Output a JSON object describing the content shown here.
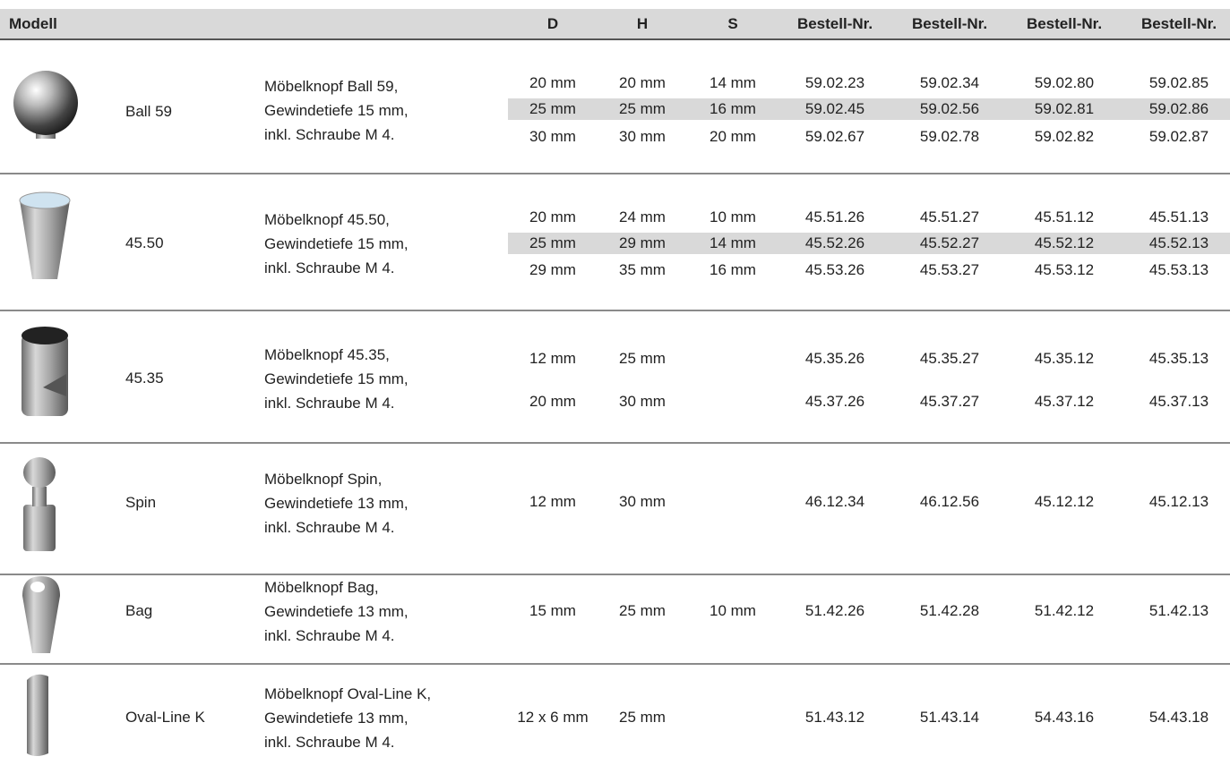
{
  "header": {
    "model": "Modell",
    "columns": [
      "D",
      "H",
      "S",
      "Bestell-Nr.",
      "Bestell-Nr.",
      "Bestell-Nr.",
      "Bestell-Nr."
    ]
  },
  "products": [
    {
      "name": "Ball 59",
      "description": [
        "Möbelknopf Ball 59,",
        "Gewindetiefe 15 mm,",
        "inkl. Schraube M 4."
      ],
      "variants": [
        {
          "D": "20 mm",
          "H": "20 mm",
          "S": "14 mm",
          "order": [
            "59.02.23",
            "59.02.34",
            "59.02.80",
            "59.02.85"
          ]
        },
        {
          "D": "25 mm",
          "H": "25 mm",
          "S": "16 mm",
          "order": [
            "59.02.45",
            "59.02.56",
            "59.02.81",
            "59.02.86"
          ]
        },
        {
          "D": "30 mm",
          "H": "30 mm",
          "S": "20 mm",
          "order": [
            "59.02.67",
            "59.02.78",
            "59.02.82",
            "59.02.87"
          ]
        }
      ]
    },
    {
      "name": "45.50",
      "description": [
        "Möbelknopf 45.50,",
        "Gewindetiefe 15 mm,",
        "inkl. Schraube M 4."
      ],
      "variants": [
        {
          "D": "20 mm",
          "H": "24 mm",
          "S": "10 mm",
          "order": [
            "45.51.26",
            "45.51.27",
            "45.51.12",
            "45.51.13"
          ]
        },
        {
          "D": "25 mm",
          "H": "29 mm",
          "S": "14 mm",
          "order": [
            "45.52.26",
            "45.52.27",
            "45.52.12",
            "45.52.13"
          ]
        },
        {
          "D": "29 mm",
          "H": "35 mm",
          "S": "16 mm",
          "order": [
            "45.53.26",
            "45.53.27",
            "45.53.12",
            "45.53.13"
          ]
        }
      ]
    },
    {
      "name": "45.35",
      "description": [
        "Möbelknopf 45.35,",
        "Gewindetiefe 15 mm,",
        "inkl. Schraube M 4."
      ],
      "variants": [
        {
          "D": "12 mm",
          "H": "25 mm",
          "order": [
            "45.35.26",
            "45.35.27",
            "45.35.12",
            "45.35.13"
          ]
        },
        {
          "D": "20 mm",
          "H": "30 mm",
          "order": [
            "45.37.26",
            "45.37.27",
            "45.37.12",
            "45.37.13"
          ]
        }
      ]
    },
    {
      "name": "Spin",
      "description": [
        "Möbelknopf Spin,",
        "Gewindetiefe 13 mm,",
        "inkl. Schraube M 4."
      ],
      "variants": [
        {
          "D": "12 mm",
          "H": "30 mm",
          "order": [
            "46.12.34",
            "46.12.56",
            "45.12.12",
            "45.12.13"
          ]
        }
      ]
    },
    {
      "name": "Bag",
      "description": [
        "Möbelknopf Bag,",
        "Gewindetiefe 13 mm,",
        "inkl. Schraube M 4."
      ],
      "variants": [
        {
          "D": "15 mm",
          "H": "25 mm",
          "S": "10 mm",
          "order": [
            "51.42.26",
            "51.42.28",
            "51.42.12",
            "51.42.13"
          ]
        }
      ]
    },
    {
      "name": "Oval-Line K",
      "description": [
        "Möbelknopf Oval-Line K,",
        "Gewindetiefe 13 mm,",
        "inkl. Schraube M 4."
      ],
      "variants": [
        {
          "D": "12 x 6 mm",
          "H": "25 mm",
          "order": [
            "51.43.12",
            "51.43.14",
            "54.43.16",
            "54.43.18"
          ]
        }
      ]
    }
  ]
}
